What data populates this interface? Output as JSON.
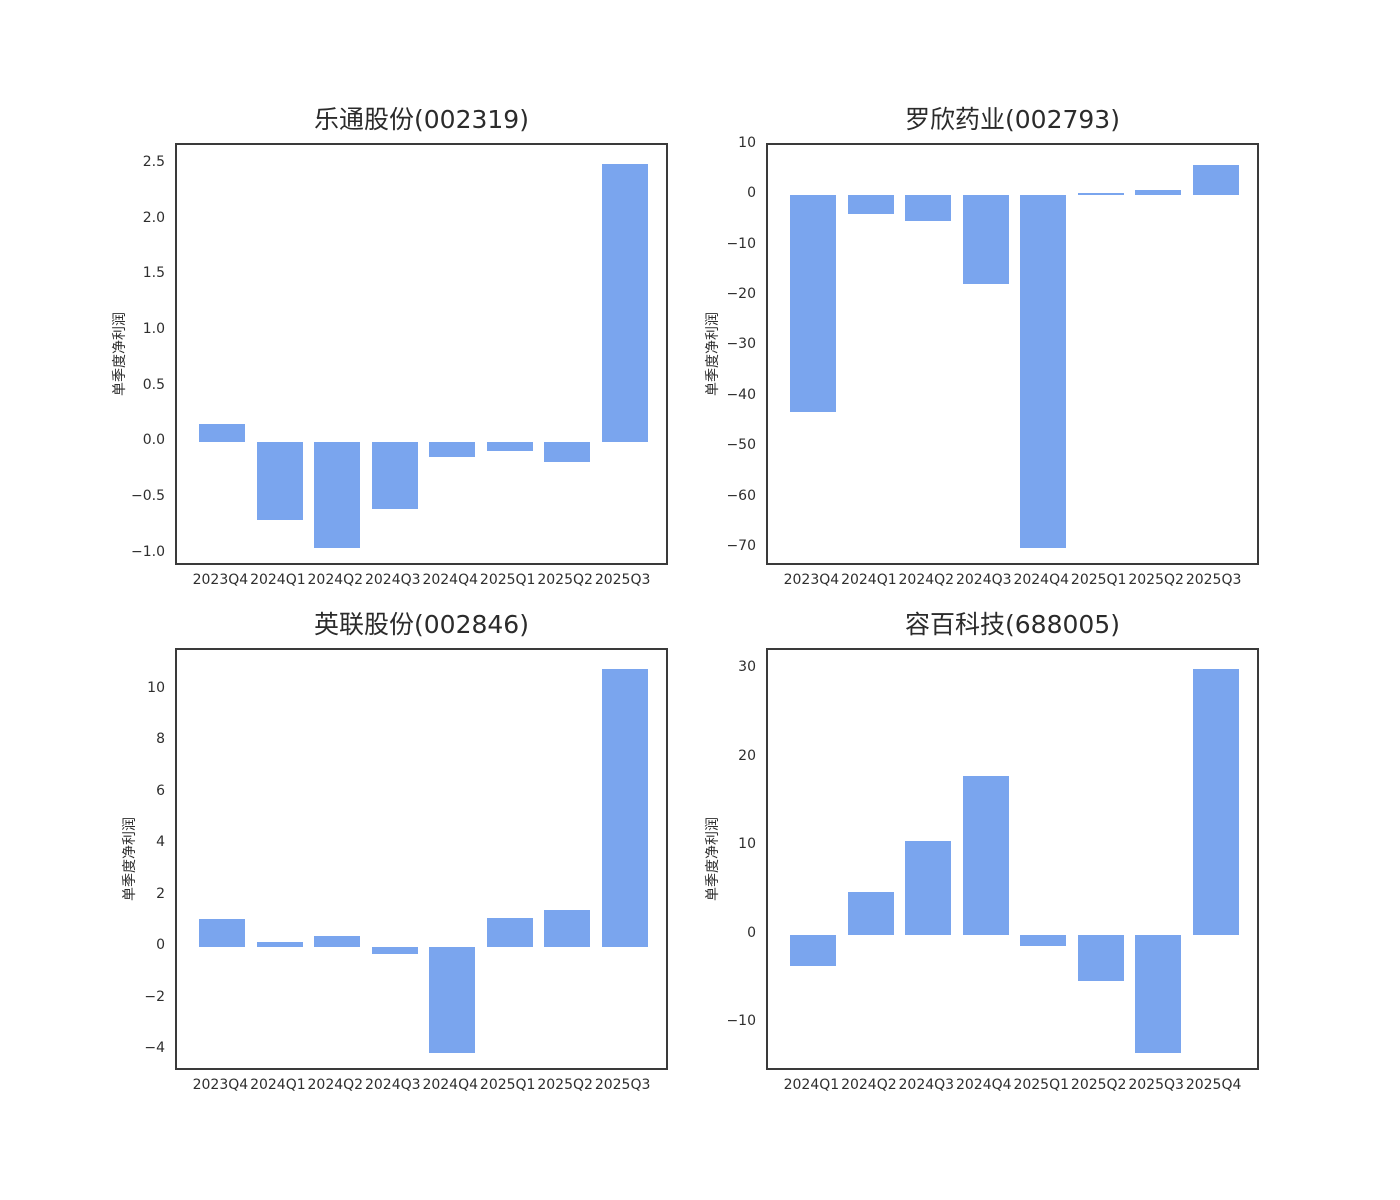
{
  "style": {
    "bar_color": "#7aa5ee",
    "spine_color": "#3a3a3a",
    "text_color": "#2e2e2e",
    "background": "#ffffff"
  },
  "chart_data": [
    {
      "type": "bar",
      "title": "乐通股份(002319)",
      "ylabel": "单季度净利润",
      "xlabel": "",
      "grid": false,
      "legend": "none",
      "categories": [
        "2023Q4",
        "2024Q1",
        "2024Q2",
        "2024Q3",
        "2024Q4",
        "2025Q1",
        "2025Q2",
        "2025Q3"
      ],
      "values": [
        0.16,
        -0.7,
        -0.95,
        -0.6,
        -0.13,
        -0.08,
        -0.18,
        2.5
      ],
      "ylim": [
        -1.12,
        2.67
      ],
      "yticks": [
        -1.0,
        -0.5,
        0.0,
        0.5,
        1.0,
        1.5,
        2.0,
        2.5
      ],
      "ytick_labels": [
        "−1.0",
        "−0.5",
        "0.0",
        "0.5",
        "1.0",
        "1.5",
        "2.0",
        "2.5"
      ]
    },
    {
      "type": "bar",
      "title": "罗欣药业(002793)",
      "ylabel": "单季度净利润",
      "xlabel": "",
      "grid": false,
      "legend": "none",
      "categories": [
        "2023Q4",
        "2024Q1",
        "2024Q2",
        "2024Q3",
        "2024Q4",
        "2025Q1",
        "2025Q2",
        "2025Q3"
      ],
      "values": [
        -43,
        -3.8,
        -5.1,
        -17.7,
        -70,
        0.4,
        1.1,
        6.1
      ],
      "ylim": [
        -73.8,
        10.0
      ],
      "yticks": [
        -70,
        -60,
        -50,
        -40,
        -30,
        -20,
        -10,
        0,
        10
      ],
      "ytick_labels": [
        "−70",
        "−60",
        "−50",
        "−40",
        "−30",
        "−20",
        "−10",
        "0",
        "10"
      ]
    },
    {
      "type": "bar",
      "title": "英联股份(002846)",
      "ylabel": "单季度净利润",
      "xlabel": "",
      "grid": false,
      "legend": "none",
      "categories": [
        "2023Q4",
        "2024Q1",
        "2024Q2",
        "2024Q3",
        "2024Q4",
        "2025Q1",
        "2025Q2",
        "2025Q3"
      ],
      "values": [
        1.1,
        0.19,
        0.45,
        -0.25,
        -4.1,
        1.15,
        1.45,
        10.8
      ],
      "ylim": [
        -4.85,
        11.55
      ],
      "yticks": [
        -4,
        -2,
        0,
        2,
        4,
        6,
        8,
        10
      ],
      "ytick_labels": [
        "−4",
        "−2",
        "0",
        "2",
        "4",
        "6",
        "8",
        "10"
      ]
    },
    {
      "type": "bar",
      "title": "容百科技(688005)",
      "ylabel": "单季度净利润",
      "xlabel": "",
      "grid": false,
      "legend": "none",
      "categories": [
        "2024Q1",
        "2024Q2",
        "2024Q3",
        "2024Q4",
        "2025Q1",
        "2025Q2",
        "2025Q3",
        "2025Q4"
      ],
      "values": [
        -3.5,
        4.8,
        10.6,
        17.9,
        -1.3,
        -5.2,
        -13.3,
        30
      ],
      "ylim": [
        -15.5,
        32.17
      ],
      "yticks": [
        -10,
        0,
        10,
        20,
        30
      ],
      "ytick_labels": [
        "−10",
        "0",
        "10",
        "20",
        "30"
      ]
    }
  ]
}
